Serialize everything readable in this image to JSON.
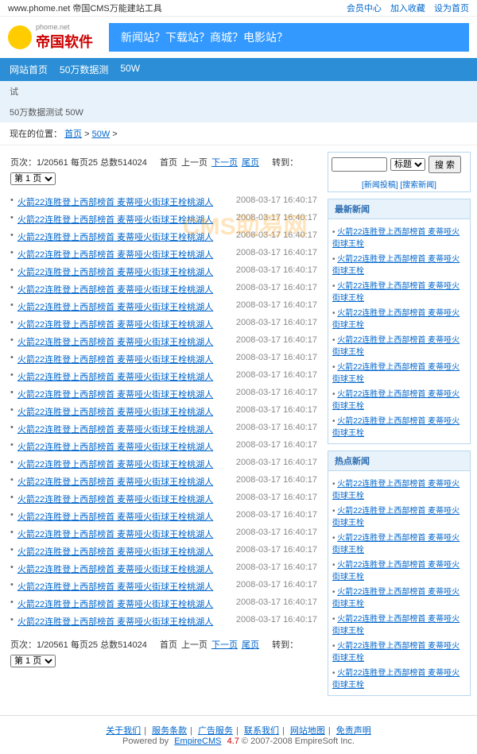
{
  "topbar": {
    "left": "www.phome.net 帝国CMS万能建站工具",
    "links": [
      "会员中心",
      "加入收藏",
      "设为首页"
    ]
  },
  "logo": {
    "sub": "phome.net",
    "text": "帝国软件"
  },
  "banner": "新闻站？下载站？商城？电影站？",
  "nav": [
    "网站首页",
    "50万数据测",
    "50W"
  ],
  "subnav": "试",
  "crumb_label": "50万数据测试 50W",
  "breadcrumb": {
    "prefix": "现在的位置：",
    "items": [
      "首页",
      "50W"
    ]
  },
  "pager": {
    "info": "页次：1/20561 每页25 总数514024",
    "links": [
      "首页",
      "上一页",
      "下一页",
      "尾页"
    ],
    "goto": "转到：",
    "sel": "第 1 页"
  },
  "article": {
    "title": "火箭22连胜登上西部榜首 麦蒂哑火街球王栓桃湖人",
    "time": "2008-03-17 16:40:17"
  },
  "count": 25,
  "search": {
    "ph": "",
    "sel": "标题",
    "btn": "搜 索",
    "sub1": "[新闻投稿]",
    "sub2": "[搜索新闻]"
  },
  "box1": {
    "title": "最新新闻"
  },
  "box2": {
    "title": "热点新闻"
  },
  "side_title": "火箭22连胜登上西部榜首 麦蒂哑火街球王栓",
  "side_count": 8,
  "footer": {
    "links": [
      "关于我们",
      "服务条款",
      "广告服务",
      "联系我们",
      "网站地图",
      "免责声明"
    ],
    "copy1": "Powered by ",
    "brand": "EmpireCMS",
    "ver": "4.7",
    "copy2": " © 2007-2008 EmpireSoft Inc."
  },
  "watermark": "CMS助易网"
}
